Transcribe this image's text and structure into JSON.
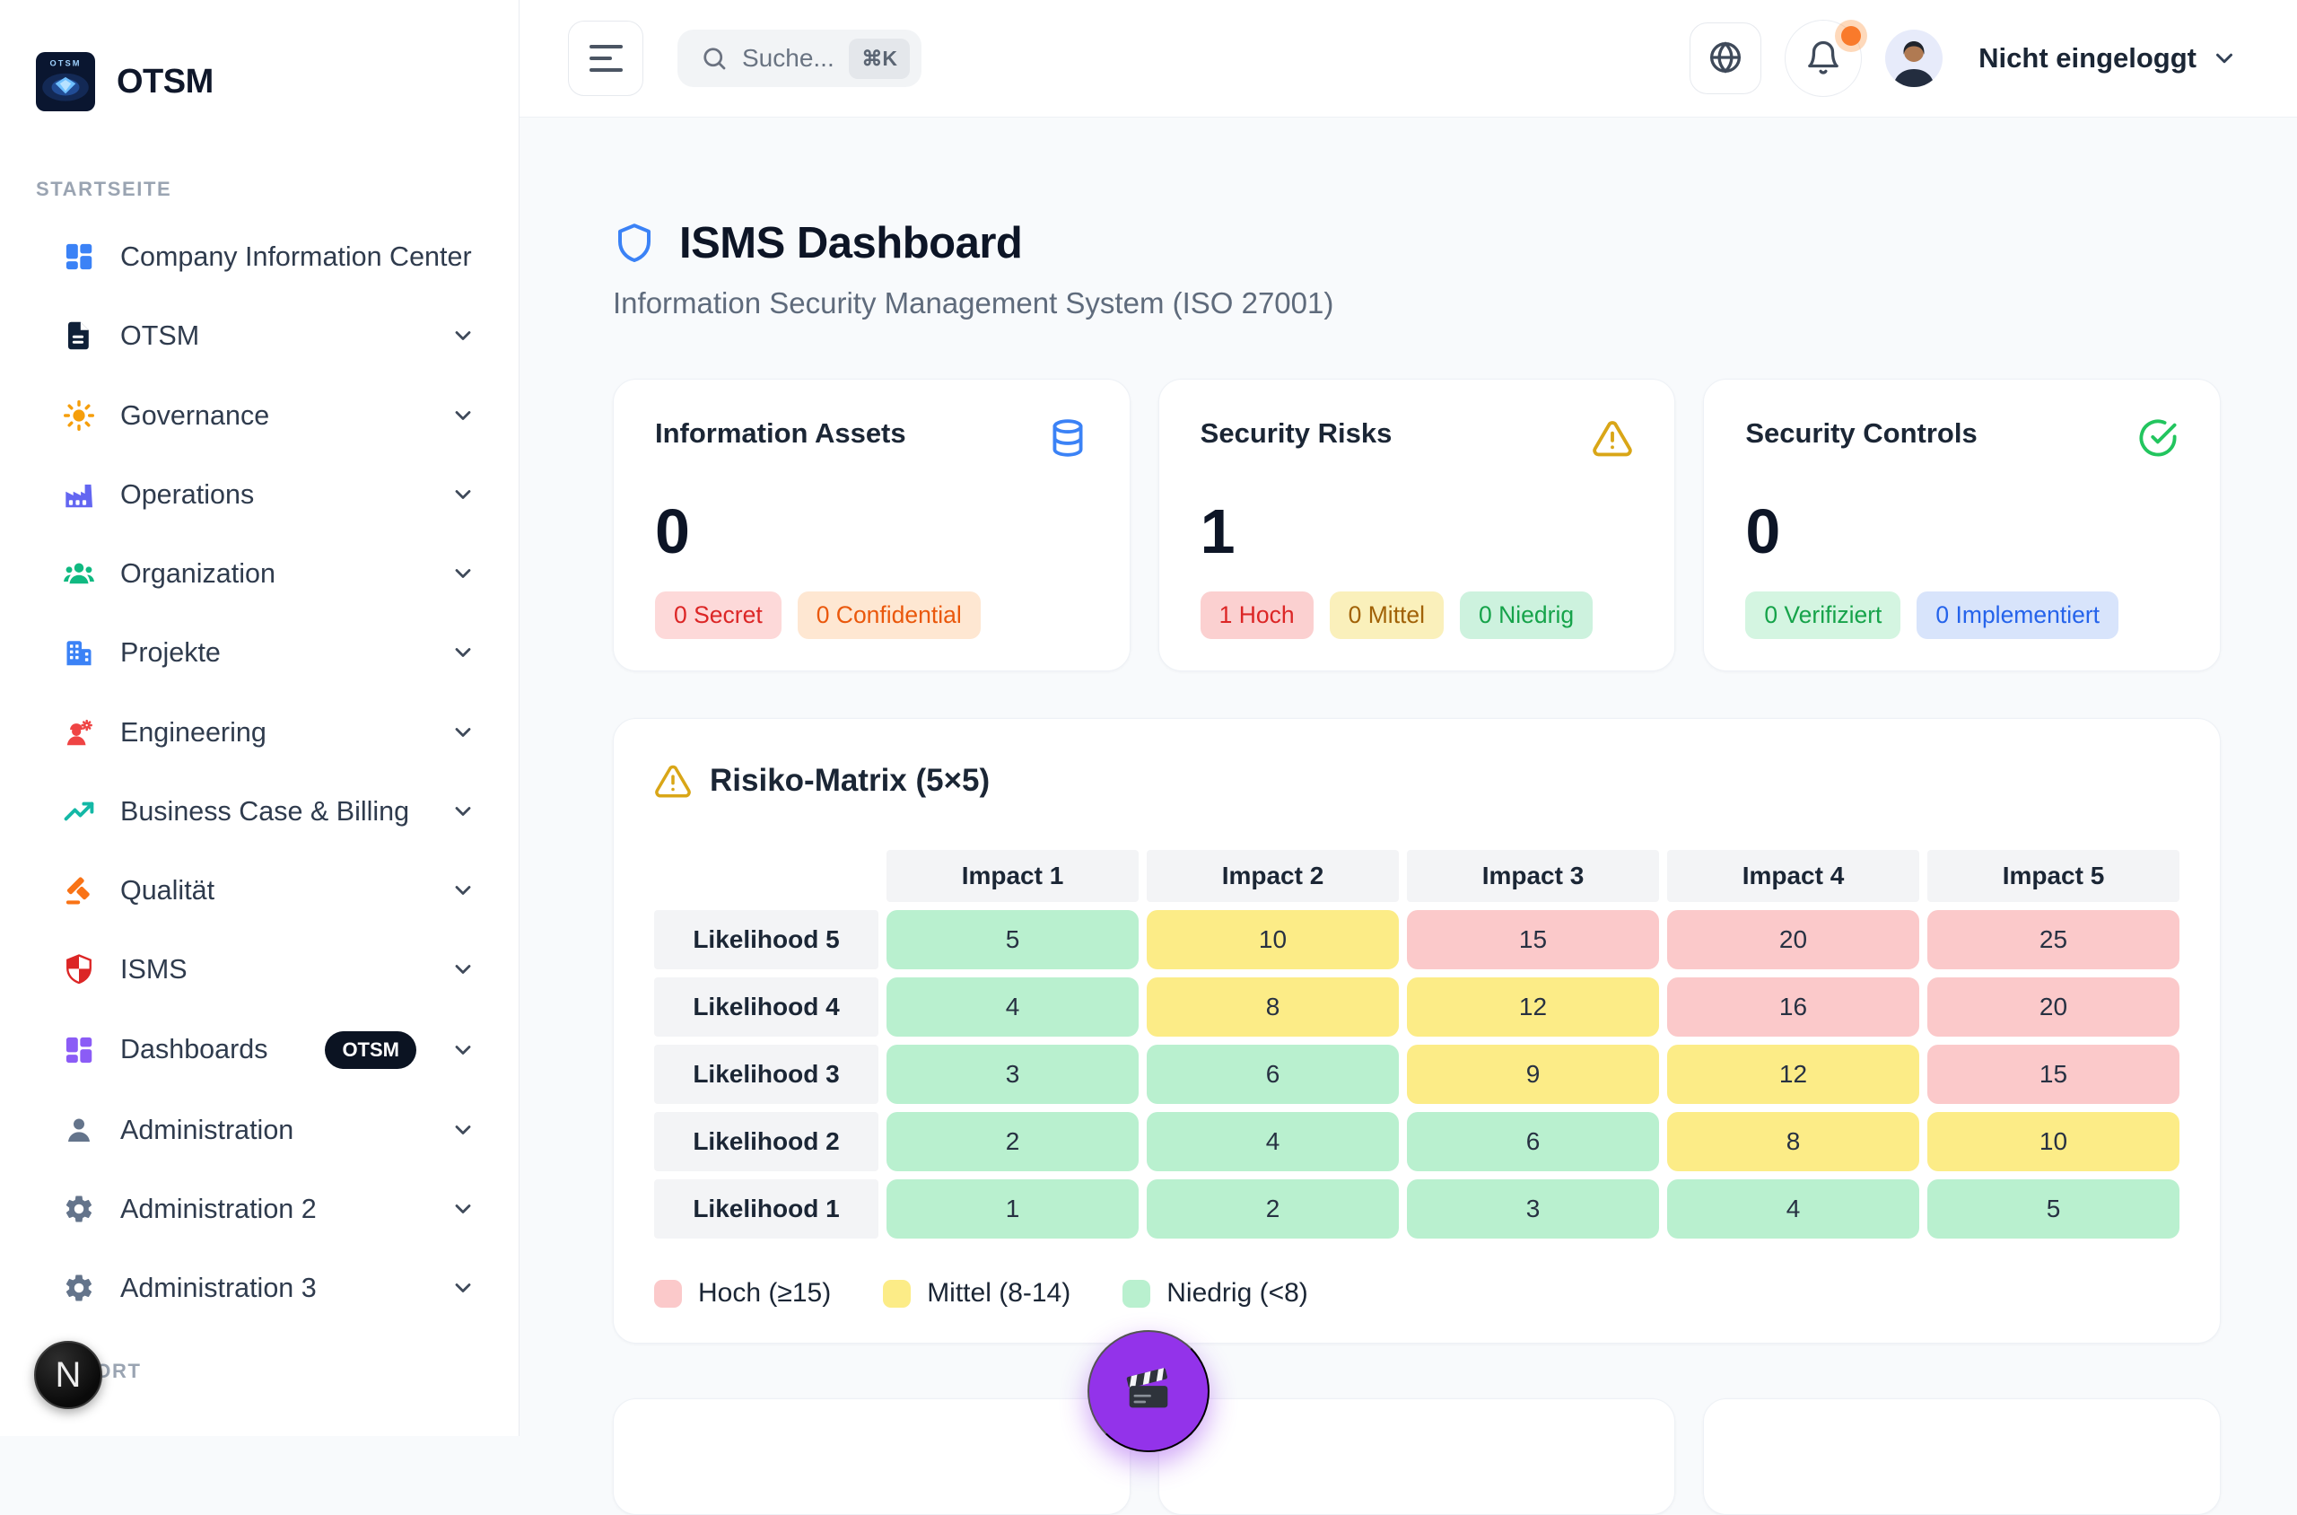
{
  "sidebar": {
    "logo_text": "OTSM",
    "logo_image_text": "OTSM",
    "section_start": "STARTSEITE",
    "section_support": "SUPPORT",
    "dev_badge": "N",
    "items": [
      {
        "label": "Company Information Center",
        "icon": "layout-grid-icon",
        "color": "#3b82f6",
        "chevron": false
      },
      {
        "label": "OTSM",
        "icon": "document-icon",
        "color": "#0f2038",
        "chevron": true
      },
      {
        "label": "Governance",
        "icon": "sun-icon",
        "color": "#f59e0b",
        "chevron": true
      },
      {
        "label": "Operations",
        "icon": "factory-icon",
        "color": "#6366f1",
        "chevron": true
      },
      {
        "label": "Organization",
        "icon": "users-icon",
        "color": "#10b981",
        "chevron": true
      },
      {
        "label": "Projekte",
        "icon": "building-icon",
        "color": "#3b82f6",
        "chevron": true
      },
      {
        "label": "Engineering",
        "icon": "engineer-icon",
        "color": "#ef4444",
        "chevron": true
      },
      {
        "label": "Business Case & Billing",
        "icon": "trending-up-icon",
        "color": "#14b8a6",
        "chevron": true
      },
      {
        "label": "Qualität",
        "icon": "gavel-icon",
        "color": "#f97316",
        "chevron": true
      },
      {
        "label": "ISMS",
        "icon": "shield-icon",
        "color": "#dc2626",
        "chevron": true
      },
      {
        "label": "Dashboards",
        "icon": "dashboard-grid-icon",
        "color": "#8b5cf6",
        "chevron": true,
        "badge": "OTSM"
      },
      {
        "label": "Administration",
        "icon": "user-icon",
        "color": "#64748b",
        "chevron": true
      },
      {
        "label": "Administration 2",
        "icon": "gear-icon",
        "color": "#64748b",
        "chevron": true
      },
      {
        "label": "Administration 3",
        "icon": "gear-icon",
        "color": "#64748b",
        "chevron": true
      }
    ]
  },
  "header": {
    "search_placeholder": "Suche...",
    "search_shortcut": "⌘K",
    "user_label": "Nicht eingeloggt",
    "actions": [
      "globe-icon",
      "bell-icon"
    ],
    "notification_dot_color": "#f97316"
  },
  "page": {
    "title": "ISMS Dashboard",
    "subtitle": "Information Security Management System (ISO 27001)"
  },
  "stats": [
    {
      "title": "Information Assets",
      "icon": "database-icon",
      "icon_color": "#3b82f6",
      "value": "0",
      "badges": [
        {
          "label": "0 Secret",
          "bg": "#fdd9d9",
          "fg": "#dc2626"
        },
        {
          "label": "0 Confidential",
          "bg": "#fee7d2",
          "fg": "#ea580c"
        }
      ]
    },
    {
      "title": "Security Risks",
      "icon": "warning-icon",
      "icon_color": "#d9a617",
      "value": "1",
      "badges": [
        {
          "label": "1 Hoch",
          "bg": "#fbd0d0",
          "fg": "#dc2626"
        },
        {
          "label": "0 Mittel",
          "bg": "#faf0bb",
          "fg": "#a16207"
        },
        {
          "label": "0 Niedrig",
          "bg": "#cdf2de",
          "fg": "#16a34a"
        }
      ]
    },
    {
      "title": "Security Controls",
      "icon": "check-circle-icon",
      "icon_color": "#22c55e",
      "value": "0",
      "badges": [
        {
          "label": "0 Verifiziert",
          "bg": "#d4f5e1",
          "fg": "#16a34a"
        },
        {
          "label": "0 Implementiert",
          "bg": "#d8e4fb",
          "fg": "#2563eb"
        }
      ]
    }
  ],
  "chart_data": {
    "type": "heatmap",
    "title": "Risiko-Matrix (5×5)",
    "columns": [
      "Impact 1",
      "Impact 2",
      "Impact 3",
      "Impact 4",
      "Impact 5"
    ],
    "rows": [
      "Likelihood 5",
      "Likelihood 4",
      "Likelihood 3",
      "Likelihood 2",
      "Likelihood 1"
    ],
    "values": [
      [
        5,
        10,
        15,
        20,
        25
      ],
      [
        4,
        8,
        12,
        16,
        20
      ],
      [
        3,
        6,
        9,
        12,
        15
      ],
      [
        2,
        4,
        6,
        8,
        10
      ],
      [
        1,
        2,
        3,
        4,
        5
      ]
    ],
    "thresholds": {
      "high_min": 15,
      "mid_min": 8
    },
    "legend": [
      {
        "label": "Hoch (≥15)",
        "color": "#fbc9ca",
        "level": "high"
      },
      {
        "label": "Mittel (8-14)",
        "color": "#fcec87",
        "level": "mid"
      },
      {
        "label": "Niedrig (<8)",
        "color": "#b9f0cf",
        "level": "low"
      }
    ]
  },
  "fab": {
    "icon": "clapperboard-icon",
    "color": "#9333ea"
  }
}
